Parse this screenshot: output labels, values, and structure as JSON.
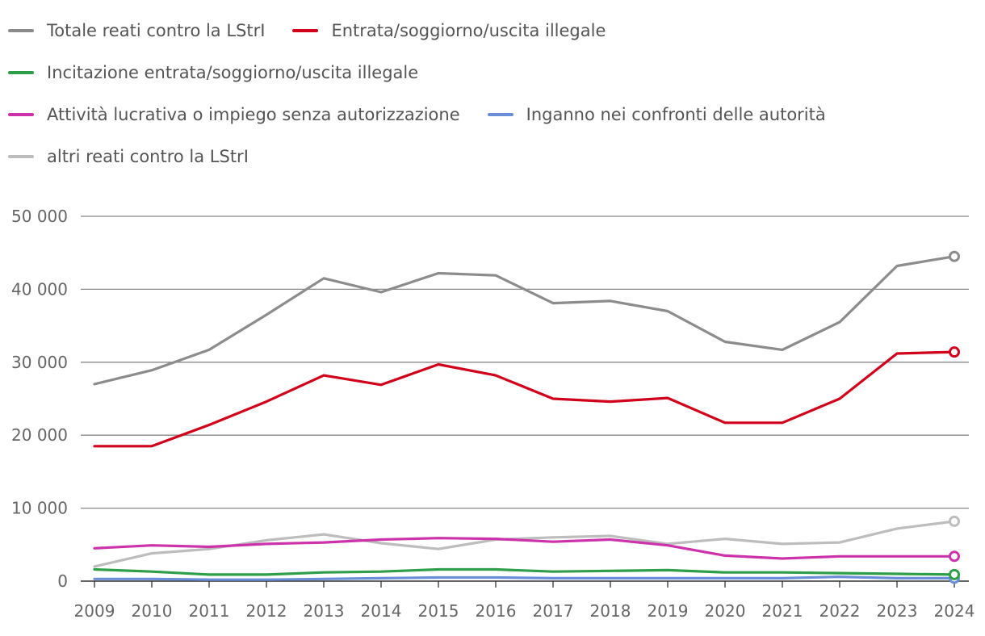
{
  "chart_data": {
    "type": "line",
    "categories": [
      "2009",
      "2010",
      "2011",
      "2012",
      "2013",
      "2014",
      "2015",
      "2016",
      "2017",
      "2018",
      "2019",
      "2020",
      "2021",
      "2022",
      "2023",
      "2024"
    ],
    "ylim": [
      0,
      50000
    ],
    "yticks": [
      0,
      10000,
      20000,
      30000,
      40000,
      50000
    ],
    "ytick_labels": [
      "0",
      "10 000",
      "20 000",
      "30 000",
      "40 000",
      "50 000"
    ],
    "grid": true,
    "legend_position": "top",
    "series": [
      {
        "name": "Totale reati contro la LStrI",
        "color": "#8c8c8c",
        "values": [
          27000,
          28900,
          31700,
          36500,
          41500,
          39600,
          42200,
          41900,
          38100,
          38400,
          37000,
          32800,
          31700,
          35500,
          43200,
          44500
        ]
      },
      {
        "name": "Entrata/soggiorno/uscita illegale",
        "color": "#d0021b",
        "values": [
          18500,
          18500,
          21400,
          24600,
          28200,
          26900,
          29700,
          28200,
          25000,
          24600,
          25100,
          21700,
          21700,
          25000,
          31200,
          31400
        ]
      },
      {
        "name": "Incitazione entrata/soggiorno/uscita illegale",
        "color": "#2e9e48",
        "values": [
          1600,
          1300,
          900,
          900,
          1200,
          1300,
          1600,
          1600,
          1300,
          1400,
          1500,
          1200,
          1200,
          1100,
          1000,
          900
        ]
      },
      {
        "name": "Attività lucrativa o impiego senza autorizzazione",
        "color": "#cc33aa",
        "values": [
          4500,
          4900,
          4700,
          5100,
          5300,
          5700,
          5900,
          5800,
          5400,
          5700,
          4900,
          3500,
          3100,
          3400,
          3400,
          3400
        ]
      },
      {
        "name": "Inganno nei confronti delle autorità",
        "color": "#6a8ed8",
        "values": [
          300,
          300,
          200,
          200,
          300,
          400,
          500,
          500,
          400,
          400,
          400,
          400,
          400,
          600,
          400,
          400
        ]
      },
      {
        "name": "altri reati contro la LStrI",
        "color": "#bdbdbd",
        "values": [
          2000,
          3800,
          4400,
          5600,
          6400,
          5200,
          4400,
          5700,
          6000,
          6200,
          5100,
          5800,
          5100,
          5300,
          7200,
          8200
        ]
      }
    ]
  }
}
